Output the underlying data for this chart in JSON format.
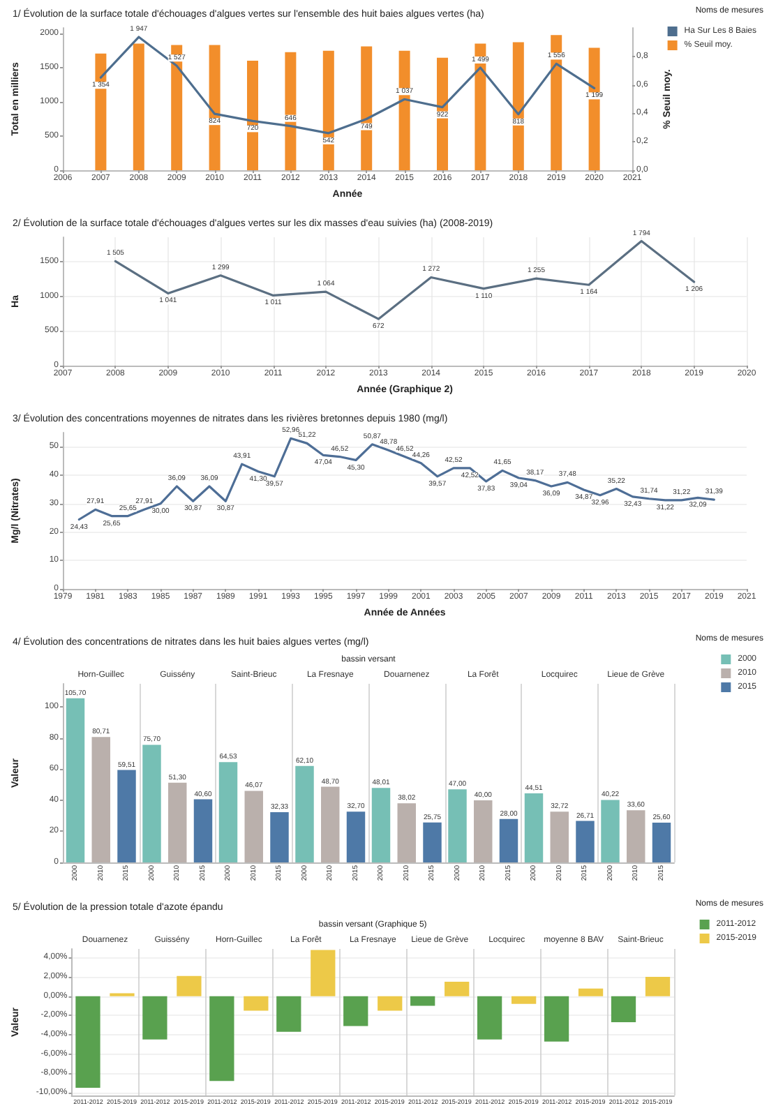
{
  "chart_data": [
    {
      "type": "bar",
      "title": "1/ Évolution de la surface totale d'échouages d'algues vertes sur l'ensemble des huit baies algues vertes (ha)",
      "xlabel": "Année",
      "ylabel": "Total en milliers",
      "y2label": "% Seuil moy.",
      "legend_title": "Noms de mesures",
      "legend": "top right",
      "grid": false,
      "marker": "none",
      "x": [
        2007,
        2008,
        2009,
        2010,
        2011,
        2012,
        2013,
        2014,
        2015,
        2016,
        2017,
        2018,
        2019,
        2020
      ],
      "xlim": [
        2006,
        2021
      ],
      "xticks": [
        2006,
        2007,
        2008,
        2009,
        2010,
        2011,
        2012,
        2013,
        2014,
        2015,
        2016,
        2017,
        2018,
        2019,
        2020,
        2021
      ],
      "ylim": [
        0,
        2080
      ],
      "yticks": [
        0,
        500,
        1000,
        1500,
        2000
      ],
      "y2lim": [
        0,
        1
      ],
      "y2ticks": [
        {
          "value": 0,
          "label": "0,0"
        },
        {
          "value": 0.2,
          "label": "0,2"
        },
        {
          "value": 0.4,
          "label": "0,4"
        },
        {
          "value": 0.6,
          "label": "0,6"
        },
        {
          "value": 0.8,
          "label": "0,8"
        }
      ],
      "series": [
        {
          "name": "Ha Sur Les 8 Baies",
          "type": "line",
          "color": "#4e6e8e",
          "values": [
            1354,
            1947,
            1527,
            824,
            720,
            646,
            542,
            749,
            1037,
            922,
            1499,
            818,
            1556,
            1199
          ],
          "value_labels": [
            "1 354",
            "1 947",
            "1 527",
            "824",
            "720",
            "646",
            "542",
            "749",
            "1 037",
            "922",
            "1 499",
            "818",
            "1 556",
            "1 199"
          ]
        },
        {
          "name": "% Seuil moy.",
          "type": "bar",
          "axis": "y2",
          "color": "#f28e2b",
          "values": [
            0.82,
            0.89,
            0.88,
            0.88,
            0.77,
            0.83,
            0.84,
            0.87,
            0.84,
            0.79,
            0.89,
            0.9,
            0.95,
            0.86
          ]
        }
      ]
    },
    {
      "type": "line",
      "title": "2/ Évolution de la surface totale d'échouages d'algues vertes sur les dix masses d'eau suivies (ha) (2008-2019)",
      "xlabel": "Année (Graphique 2)",
      "ylabel": "Ha",
      "grid": true,
      "marker": "none",
      "x": [
        2008,
        2009,
        2010,
        2011,
        2012,
        2013,
        2014,
        2015,
        2016,
        2017,
        2018,
        2019
      ],
      "xlim": [
        2007,
        2020
      ],
      "xticks": [
        2007,
        2008,
        2009,
        2010,
        2011,
        2012,
        2013,
        2014,
        2015,
        2016,
        2017,
        2018,
        2019,
        2020
      ],
      "ylim": [
        0,
        1850
      ],
      "yticks": [
        0,
        500,
        1000,
        1500
      ],
      "series": [
        {
          "color": "#5b6f82",
          "values": [
            1505,
            1041,
            1299,
            1011,
            1064,
            672,
            1272,
            1110,
            1255,
            1164,
            1794,
            1206
          ],
          "value_labels": [
            "1 505",
            "1 041",
            "1 299",
            "1 011",
            "1 064",
            "672",
            "1 272",
            "1 110",
            "1 255",
            "1 164",
            "1 794",
            "1 206"
          ]
        }
      ]
    },
    {
      "type": "line",
      "title": "3/ Évolution des concentrations moyennes de nitrates dans les rivières bretonnes depuis 1980 (mg/l)",
      "xlabel": "Année de Années",
      "ylabel": "Mg/l (Nitrates)",
      "grid": "y",
      "marker": "none",
      "x": [
        1980,
        1981,
        1982,
        1983,
        1984,
        1985,
        1986,
        1987,
        1988,
        1989,
        1990,
        1991,
        1992,
        1993,
        1994,
        1995,
        1996,
        1997,
        1998,
        1999,
        2000,
        2001,
        2002,
        2003,
        2004,
        2005,
        2006,
        2007,
        2008,
        2009,
        2010,
        2011,
        2012,
        2013,
        2014,
        2015,
        2016,
        2017,
        2018,
        2019
      ],
      "xlim": [
        1979,
        2021
      ],
      "xticks": [
        1979,
        1981,
        1983,
        1985,
        1987,
        1989,
        1991,
        1993,
        1995,
        1997,
        1999,
        2001,
        2003,
        2005,
        2007,
        2009,
        2011,
        2013,
        2015,
        2017,
        2019,
        2021
      ],
      "ylim": [
        0,
        55
      ],
      "yticks": [
        0,
        10,
        20,
        30,
        40,
        50
      ],
      "series": [
        {
          "color": "#4e6e96",
          "values": [
            24.43,
            27.91,
            25.65,
            25.65,
            27.91,
            30.0,
            36.09,
            30.87,
            36.09,
            30.87,
            43.91,
            41.3,
            39.57,
            52.96,
            51.22,
            47.04,
            46.52,
            45.3,
            50.87,
            48.78,
            46.52,
            44.26,
            39.57,
            42.52,
            42.52,
            37.83,
            41.65,
            39.04,
            38.17,
            36.09,
            37.48,
            34.87,
            32.96,
            35.22,
            32.43,
            31.74,
            31.22,
            31.22,
            32.09,
            31.39
          ],
          "value_labels": [
            "24,43",
            "27,91",
            "25,65",
            "25,65",
            "27,91",
            "30,00",
            "36,09",
            "30,87",
            "36,09",
            "30,87",
            "43,91",
            "41,30",
            "39,57",
            "52,96",
            "51,22",
            "47,04",
            "46,52",
            "45,30",
            "50,87",
            "48,78",
            "46,52",
            "44,26",
            "39,57",
            "42,52",
            "42,52",
            "37,83",
            "41,65",
            "39,04",
            "38,17",
            "36,09",
            "37,48",
            "34,87",
            "32,96",
            "35,22",
            "32,43",
            "31,74",
            "31,22",
            "31,22",
            "32,09",
            "31,39"
          ]
        }
      ]
    },
    {
      "type": "bar",
      "title": "4/ Évolution des concentrations de nitrates dans les huit baies algues vertes (mg/l)",
      "xlabel": "bassin versant",
      "ylabel": "Valeur",
      "legend_title": "Noms de mesures",
      "legend": "top right",
      "grid": "x",
      "categories": [
        "Horn-Guillec",
        "Guissény",
        "Saint-Brieuc",
        "La Fresnaye",
        "Douarnenez",
        "La Forêt",
        "Locquirec",
        "Lieue de Grève"
      ],
      "ylim": [
        0,
        115
      ],
      "yticks": [
        0,
        20,
        40,
        60,
        80,
        100
      ],
      "series": [
        {
          "name": "2000",
          "color": "#76bfb5",
          "values": [
            105.7,
            75.7,
            64.53,
            62.1,
            48.01,
            47.0,
            44.51,
            40.22
          ],
          "value_labels": [
            "105,70",
            "75,70",
            "64,53",
            "62,10",
            "48,01",
            "47,00",
            "44,51",
            "40,22"
          ]
        },
        {
          "name": "2010",
          "color": "#bab0ac",
          "values": [
            80.71,
            51.3,
            46.07,
            48.7,
            38.02,
            40.0,
            32.72,
            33.6
          ],
          "value_labels": [
            "80,71",
            "51,30",
            "46,07",
            "48,70",
            "38,02",
            "40,00",
            "32,72",
            "33,60"
          ]
        },
        {
          "name": "2015",
          "color": "#4e79a7",
          "values": [
            59.51,
            40.6,
            32.33,
            32.7,
            25.75,
            28.0,
            26.71,
            25.6
          ],
          "value_labels": [
            "59,51",
            "40,60",
            "32,33",
            "32,70",
            "25,75",
            "28,00",
            "26,71",
            "25,60"
          ]
        }
      ]
    },
    {
      "type": "bar",
      "title": "5/ Évolution de la pression totale d'azote épandu",
      "xlabel": "bassin versant (Graphique 5)",
      "ylabel": "Valeur",
      "legend_title": "Noms de mesures",
      "legend": "top right",
      "grid": true,
      "categories": [
        "Douarnenez",
        "Guissény",
        "Horn-Guillec",
        "La Forêt",
        "La Fresnaye",
        "Lieue de Grève",
        "Locquirec",
        "moyenne 8 BAV",
        "Saint-Brieuc"
      ],
      "ylim": [
        -10.3,
        4.9
      ],
      "yticks": [
        {
          "value": -10,
          "label": "-10,00%"
        },
        {
          "value": -8,
          "label": "-8,00%"
        },
        {
          "value": -6,
          "label": "-6,00%"
        },
        {
          "value": -4,
          "label": "-4,00%"
        },
        {
          "value": -2,
          "label": "-2,00%"
        },
        {
          "value": 0,
          "label": "0,00%"
        },
        {
          "value": 2,
          "label": "2,00%"
        },
        {
          "value": 4,
          "label": "4,00%"
        }
      ],
      "series": [
        {
          "name": "2011-2012",
          "color": "#59a14f",
          "values": [
            -9.5,
            -4.5,
            -8.8,
            -3.7,
            -3.1,
            -1.0,
            -4.5,
            -4.7,
            -2.7
          ]
        },
        {
          "name": "2015-2019",
          "color": "#edc948",
          "values": [
            0.3,
            2.1,
            -1.5,
            4.8,
            -1.5,
            1.5,
            -0.8,
            0.8,
            2.0
          ]
        }
      ]
    }
  ]
}
